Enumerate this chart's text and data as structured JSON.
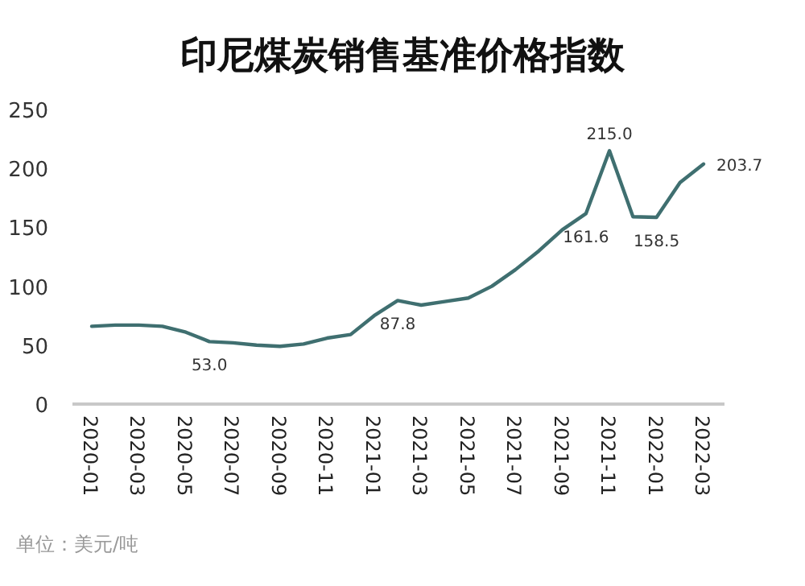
{
  "chart_data": {
    "type": "line",
    "title": "印尼煤炭销售基准价格指数",
    "categories": [
      "2020-01",
      null,
      "2020-03",
      null,
      "2020-05",
      null,
      "2020-07",
      null,
      "2020-09",
      null,
      "2020-11",
      null,
      "2021-01",
      null,
      "2021-03",
      null,
      "2021-05",
      null,
      "2021-07",
      null,
      "2021-09",
      null,
      "2021-11",
      null,
      "2022-01",
      null,
      "2022-03"
    ],
    "series": [
      {
        "color": "#3f6f70",
        "values": [
          66,
          67,
          67,
          66,
          61,
          53.0,
          52,
          50,
          49,
          51,
          56,
          59,
          75,
          87.8,
          84,
          87,
          90,
          100,
          114,
          130,
          148,
          161.6,
          215.0,
          159,
          158.5,
          188,
          203.7
        ],
        "value_labels": [
          null,
          null,
          null,
          null,
          null,
          "53.0",
          null,
          null,
          null,
          null,
          null,
          null,
          null,
          "87.8",
          null,
          null,
          null,
          null,
          null,
          null,
          null,
          "161.6",
          "215.0",
          null,
          "158.5",
          null,
          "203.7"
        ]
      }
    ],
    "ylim": [
      0,
      250
    ],
    "yticks": [
      0,
      50,
      100,
      150,
      200,
      250
    ],
    "grid": false,
    "marker": "none",
    "line_style": "solid",
    "annotations": [
      "单位：美元/吨"
    ]
  }
}
